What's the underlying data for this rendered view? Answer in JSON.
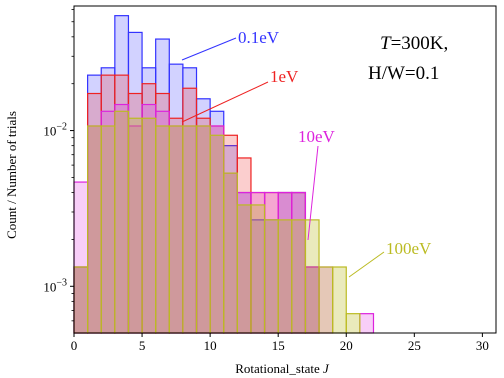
{
  "chart_data": {
    "type": "histogram",
    "xlabel": "Rotational_state J",
    "ylabel": "Count / Number of trials",
    "xlim": [
      0,
      31
    ],
    "ylim_log10": [
      -3.3,
      -1.2
    ],
    "yscale": "log",
    "x_ticks": [
      "0",
      "5",
      "10",
      "15",
      "20",
      "25",
      "30"
    ],
    "x_tick_values": [
      0,
      5,
      10,
      15,
      20,
      25,
      30
    ],
    "y_ticks": [
      {
        "base": "10",
        "exp": "−2",
        "value": 0.01
      },
      {
        "base": "10",
        "exp": "−3",
        "value": 0.001
      }
    ],
    "conditions": [
      "T=300K,",
      "H/W=0.1"
    ],
    "bins": [
      0,
      1,
      2,
      3,
      4,
      5,
      6,
      7,
      8,
      9,
      10,
      11,
      12,
      13,
      14,
      15,
      16,
      17,
      18,
      19,
      20,
      21,
      22
    ],
    "series": [
      {
        "name": "0.1eV",
        "color": "#3333ff",
        "values": [
          0.00133,
          0.0227,
          0.0253,
          0.0547,
          0.0427,
          0.0253,
          0.0387,
          0.0267,
          0.0253,
          0.016,
          0.0133,
          0.008,
          0.004,
          0.00267,
          0.00267,
          0.004,
          0.004,
          0.00133,
          0,
          0,
          0,
          0
        ]
      },
      {
        "name": "1eV",
        "color": "#ee2222",
        "values": [
          0.00133,
          0.0173,
          0.0227,
          0.0227,
          0.0173,
          0.02,
          0.0173,
          0.012,
          0.0187,
          0.012,
          0.0107,
          0.00933,
          0.00667,
          0.004,
          0.004,
          0.004,
          0.004,
          0.00133,
          0,
          0,
          0,
          0
        ]
      },
      {
        "name": "10eV",
        "color": "#dd22dd",
        "values": [
          0.00467,
          0.0107,
          0.0133,
          0.0147,
          0.0107,
          0.0147,
          0.0133,
          0.0107,
          0.0107,
          0.0107,
          0.0107,
          0.00533,
          0.004,
          0.004,
          0.004,
          0.004,
          0.004,
          0.00133,
          0.00133,
          0,
          0,
          0.000667
        ]
      },
      {
        "name": "100eV",
        "color": "#bbbb22",
        "values": [
          0.00133,
          0.0107,
          0.0107,
          0.0133,
          0.012,
          0.012,
          0.0107,
          0.0107,
          0.0107,
          0.0107,
          0.00933,
          0.00533,
          0.00333,
          0.00333,
          0.00267,
          0.00267,
          0.00267,
          0.00267,
          0.00133,
          0.00133,
          0.000667,
          0
        ]
      }
    ]
  }
}
